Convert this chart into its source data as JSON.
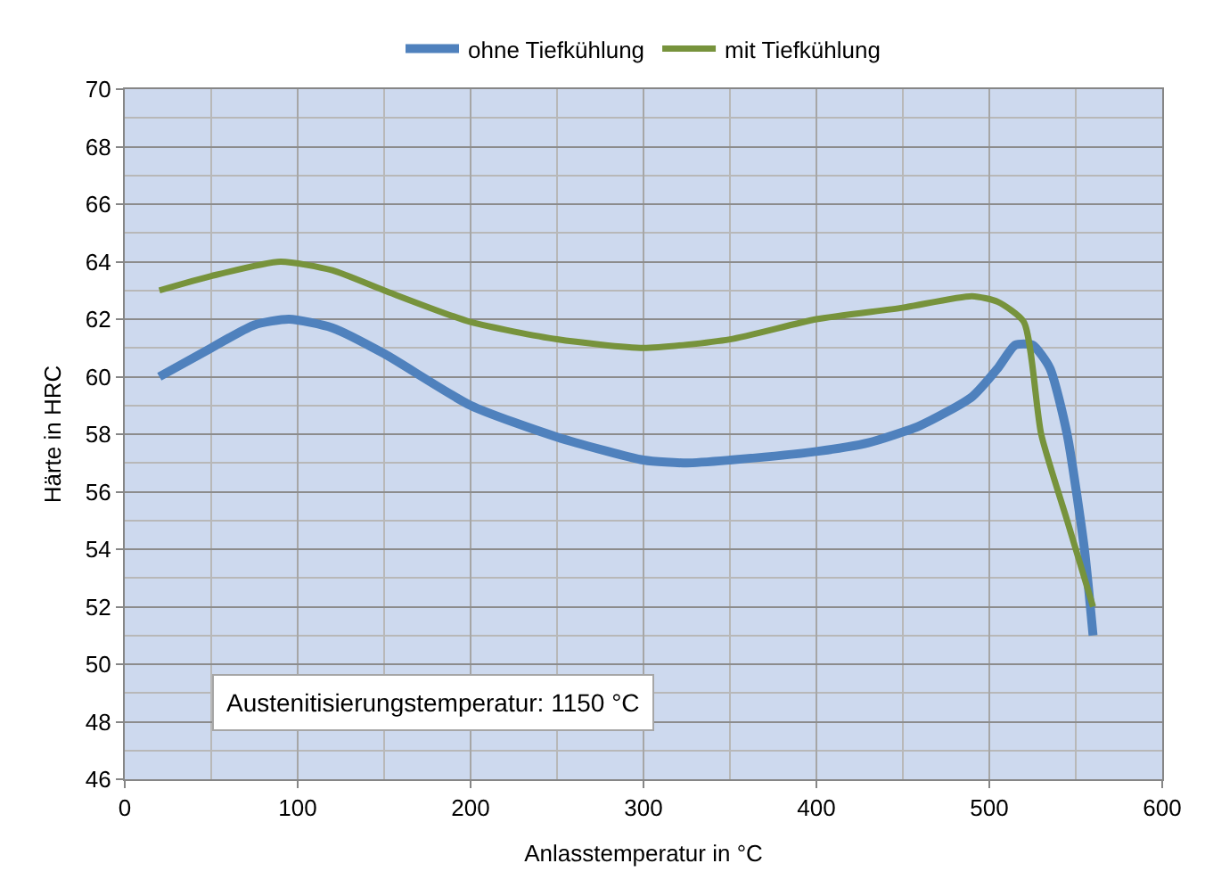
{
  "chart_data": {
    "type": "line",
    "xlabel": "Anlasstemperatur in °C",
    "ylabel": "Härte in HRC",
    "series": [
      {
        "name": "ohne Tiefkühlung",
        "color": "#4f81bd",
        "x": [
          20,
          50,
          75,
          95,
          120,
          150,
          200,
          250,
          300,
          325,
          350,
          400,
          430,
          460,
          490,
          505,
          515,
          525,
          535,
          545,
          555,
          560
        ],
        "values": [
          60,
          61,
          61.8,
          62,
          61.7,
          60.8,
          59,
          57.9,
          57.1,
          57,
          57.1,
          57.4,
          57.7,
          58.3,
          59.3,
          60.3,
          61.1,
          61.1,
          60.3,
          58,
          54,
          51
        ]
      },
      {
        "name": "mit Tiefkühlung",
        "color": "#77933c",
        "x": [
          20,
          50,
          90,
          120,
          150,
          200,
          250,
          300,
          350,
          400,
          450,
          490,
          505,
          520,
          530,
          545,
          560
        ],
        "values": [
          63,
          63.5,
          64,
          63.7,
          63,
          61.9,
          61.3,
          61,
          61.3,
          62,
          62.4,
          62.8,
          62.6,
          61.9,
          58,
          55,
          52
        ]
      }
    ],
    "annotations": [
      "Austenitisierungstemperatur: 1150 °C"
    ],
    "xlim": [
      0,
      600
    ],
    "xticks": [
      0,
      100,
      200,
      300,
      400,
      500,
      600
    ],
    "ylim": [
      46,
      70
    ],
    "yticks": [
      46,
      48,
      50,
      52,
      54,
      56,
      58,
      60,
      62,
      64,
      66,
      68,
      70
    ],
    "grid": true,
    "legend": "top",
    "marker": "none",
    "line_style": "solid"
  }
}
